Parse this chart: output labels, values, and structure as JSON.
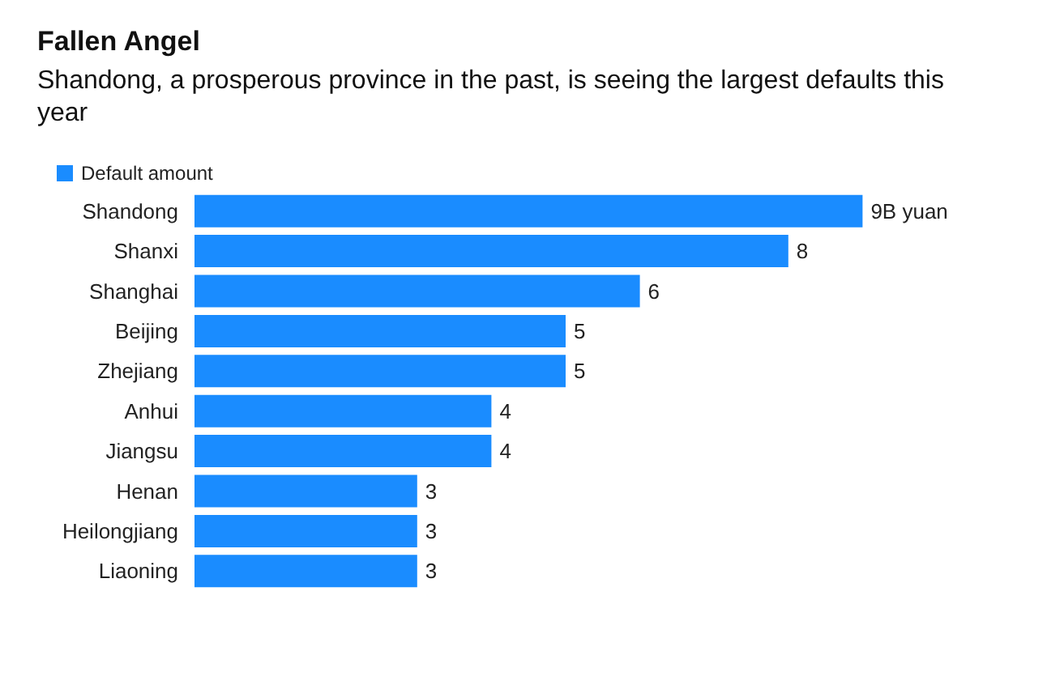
{
  "chart_data": {
    "type": "bar",
    "orientation": "horizontal",
    "title": "Fallen Angel",
    "subtitle": "Shandong, a prosperous province in the past, is seeing the largest defaults this year",
    "categories": [
      "Shandong",
      "Shanxi",
      "Shanghai",
      "Beijing",
      "Zhejiang",
      "Anhui",
      "Jiangsu",
      "Henan",
      "Heilongjiang",
      "Liaoning"
    ],
    "series": [
      {
        "name": "Default amount",
        "color": "#1a8cff",
        "values": [
          9,
          8,
          6,
          5,
          5,
          4,
          4,
          3,
          3,
          3
        ],
        "value_labels": [
          "9B yuan",
          "8",
          "6",
          "5",
          "5",
          "4",
          "4",
          "3",
          "3",
          "3"
        ]
      }
    ],
    "legend": "top left"
  }
}
